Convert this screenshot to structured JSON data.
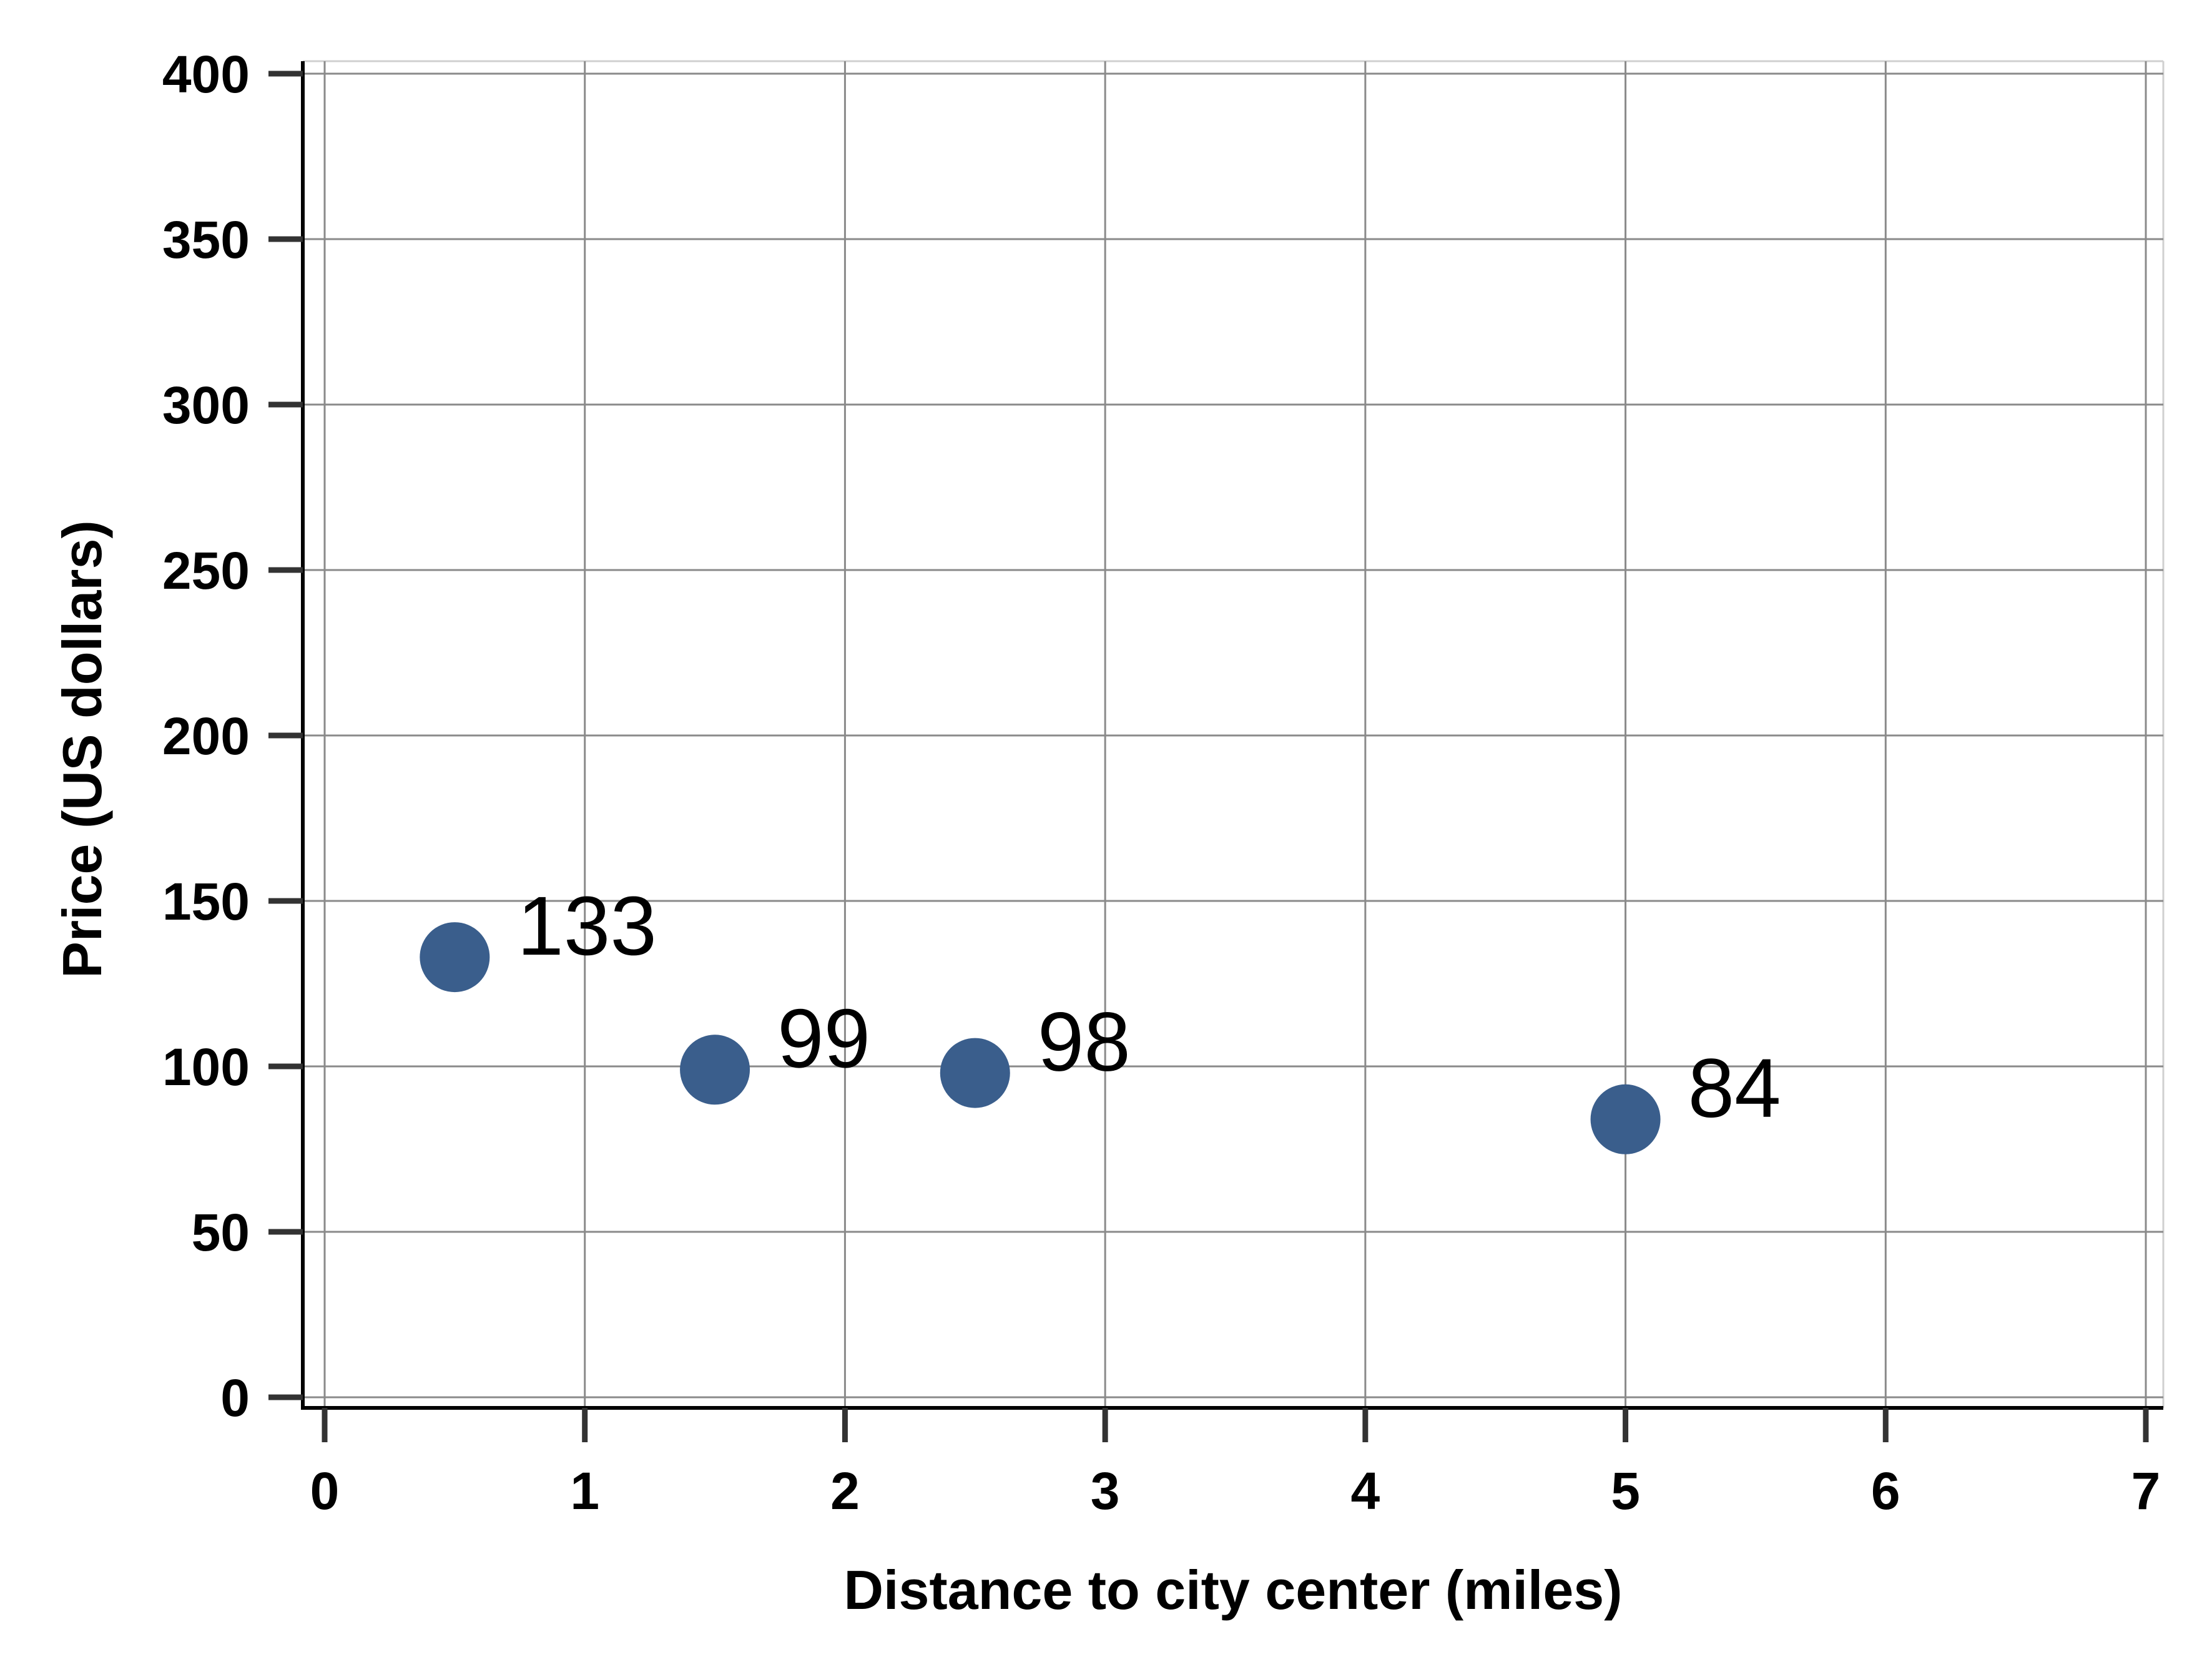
{
  "chart_data": {
    "type": "scatter",
    "title": "",
    "xlabel": "Distance to city center (miles)",
    "ylabel": "Price (US dollars)",
    "xlim": [
      0,
      7
    ],
    "ylim": [
      0,
      400
    ],
    "x_ticks": [
      0,
      1,
      2,
      3,
      4,
      5,
      6,
      7
    ],
    "y_ticks": [
      0,
      50,
      100,
      150,
      200,
      250,
      300,
      350,
      400
    ],
    "grid": true,
    "legend": "none",
    "marker_color": "#3a5e8c",
    "grid_color": "#8a8a8a",
    "axis_color": "#000000",
    "series": [
      {
        "points": [
          {
            "x": 0.5,
            "y": 133,
            "label": "133"
          },
          {
            "x": 1.5,
            "y": 99,
            "label": "99"
          },
          {
            "x": 2.5,
            "y": 98,
            "label": "98"
          },
          {
            "x": 5.0,
            "y": 84,
            "label": "84"
          }
        ]
      }
    ]
  }
}
